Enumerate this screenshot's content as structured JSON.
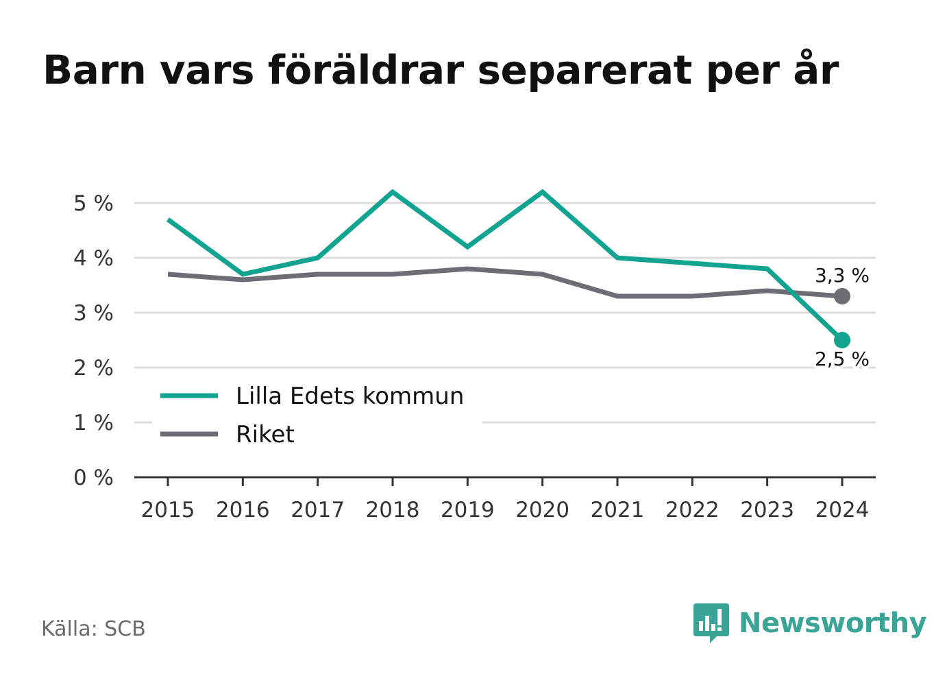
{
  "title": "Barn vars föräldrar separerat per år",
  "source": "Källa: SCB",
  "brand": {
    "name": "Newsworthy",
    "icon": "newsworthy-logo-icon",
    "color": "#3aa596"
  },
  "chart_data": {
    "type": "line",
    "title": "Barn vars föräldrar separerat per år",
    "x": [
      "2015",
      "2016",
      "2017",
      "2018",
      "2019",
      "2020",
      "2021",
      "2022",
      "2023",
      "2024"
    ],
    "y_ticks": [
      {
        "value": 0,
        "label": "0 %"
      },
      {
        "value": 1,
        "label": "1 %"
      },
      {
        "value": 2,
        "label": "2 %"
      },
      {
        "value": 3,
        "label": "3 %"
      },
      {
        "value": 4,
        "label": "4 %"
      },
      {
        "value": 5,
        "label": "5 %"
      }
    ],
    "ylim": [
      0,
      5
    ],
    "grid": true,
    "legend_position": "bottom-left",
    "series": [
      {
        "name": "Lilla Edets kommun",
        "color": "#12a391",
        "values": [
          4.7,
          3.7,
          4.0,
          5.2,
          4.2,
          5.2,
          4.0,
          3.9,
          3.8,
          2.5
        ],
        "end_label": "2,5 %"
      },
      {
        "name": "Riket",
        "color": "#6e6d74",
        "values": [
          3.7,
          3.6,
          3.7,
          3.7,
          3.8,
          3.7,
          3.3,
          3.3,
          3.4,
          3.3
        ],
        "end_label": "3,3 %"
      }
    ]
  }
}
